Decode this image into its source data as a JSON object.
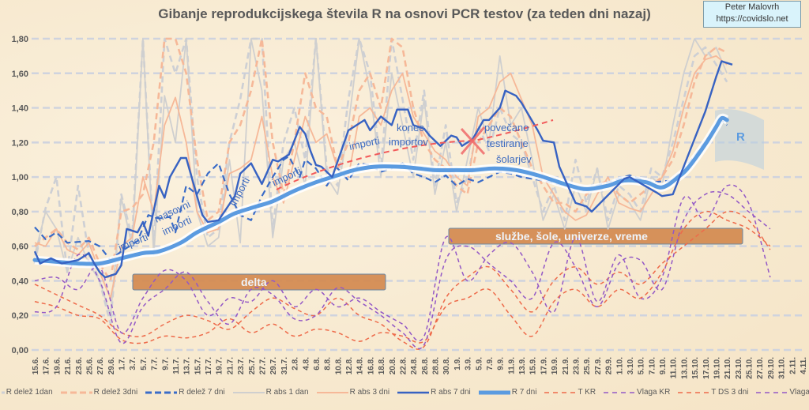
{
  "credit": {
    "line1": "Peter Malovrh",
    "line2": "https://covidslo.net"
  },
  "chart_data": {
    "type": "line",
    "title": "Gibanje reprodukcijskega števila R na osnovi PCR testov (za teden dni nazaj)",
    "xlabel": "",
    "ylabel": "",
    "ylim": [
      0,
      1.8
    ],
    "x_unit": "days since 15.6.",
    "y_ticks": [
      "0,00",
      "0,20",
      "0,40",
      "0,60",
      "0,80",
      "1,00",
      "1,20",
      "1,40",
      "1,60",
      "1,80"
    ],
    "x_ticks": [
      "15.6.",
      "17.6.",
      "19.6.",
      "21.6.",
      "23.6.",
      "25.6.",
      "27.6.",
      "29.6.",
      "1.7.",
      "3.7.",
      "5.7.",
      "7.7.",
      "9.7.",
      "11.7.",
      "13.7.",
      "15.7.",
      "17.7.",
      "19.7.",
      "21.7.",
      "23.7.",
      "25.7.",
      "27.7.",
      "29.7.",
      "31.7.",
      "2.8.",
      "4.8.",
      "6.8.",
      "8.8.",
      "10.8.",
      "12.8.",
      "14.8.",
      "16.8.",
      "18.8.",
      "20.8.",
      "22.8.",
      "24.8.",
      "26.8.",
      "28.8.",
      "30.8.",
      "1.9.",
      "3.9.",
      "5.9.",
      "7.9.",
      "9.9.",
      "11.9.",
      "13.9.",
      "15.9.",
      "17.9.",
      "19.9.",
      "21.9.",
      "23.9.",
      "25.9.",
      "27.9.",
      "29.9.",
      "1.10.",
      "3.10.",
      "5.10.",
      "7.10.",
      "9.10.",
      "11.10.",
      "13.10.",
      "15.10.",
      "17.10.",
      "19.10.",
      "21.10.",
      "23.10.",
      "25.10.",
      "27.10.",
      "29.10.",
      "31.10.",
      "2.11.",
      "4.11."
    ],
    "grid": true,
    "legend_position": "bottom",
    "series": [
      {
        "name": "R delež 1dan",
        "color": "#cdcfd4",
        "style": "dashed",
        "step": 2,
        "values": [
          0.5,
          0.82,
          1.0,
          0.45,
          0.95,
          0.55,
          0.4,
          0.15,
          0.9,
          0.65,
          1.8,
          0.6,
          1.8,
          1.6,
          1.8,
          1.0,
          0.65,
          0.7,
          1.2,
          1.45,
          1.8,
          1.8,
          0.7,
          1.2,
          1.4,
          1.1,
          1.8,
          1.05,
          0.95,
          1.45,
          1.8,
          1.6,
          1.05,
          1.8,
          1.45,
          1.1,
          1.5,
          0.95,
          1.3,
          0.85,
          1.0,
          1.3,
          1.15,
          1.4,
          1.25,
          1.2,
          1.0,
          0.8,
          0.95,
          0.75,
          1.1,
          0.85,
          1.05,
          0.75,
          0.95,
          0.9,
          0.8,
          1.05,
          1.0,
          1.2,
          1.45,
          1.7,
          1.75,
          1.65,
          1.55
        ]
      },
      {
        "name": "R delež 3dni",
        "color": "#f6b898",
        "style": "dashed",
        "step": 2,
        "values": [
          0.6,
          0.65,
          0.7,
          0.62,
          0.58,
          0.65,
          0.5,
          0.4,
          0.8,
          0.82,
          0.9,
          1.2,
          1.8,
          1.8,
          1.6,
          1.1,
          0.75,
          0.8,
          1.2,
          1.3,
          1.5,
          1.8,
          1.2,
          0.9,
          1.2,
          1.6,
          1.4,
          1.35,
          1.05,
          1.2,
          1.5,
          1.6,
          1.4,
          1.8,
          1.75,
          1.4,
          1.2,
          1.1,
          1.05,
          0.95,
          0.9,
          1.2,
          1.3,
          1.4,
          1.35,
          1.2,
          1.05,
          0.95,
          0.85,
          0.85,
          0.8,
          0.9,
          0.95,
          0.98,
          0.9,
          0.85,
          0.9,
          0.95,
          1.0,
          1.1,
          1.3,
          1.55,
          1.7,
          1.75,
          1.72
        ]
      },
      {
        "name": "R delež 7 dni",
        "color": "#3a6cc8",
        "style": "dashed",
        "points": [
          [
            0,
            0.71
          ],
          [
            2,
            0.64
          ],
          [
            4,
            0.68
          ],
          [
            6,
            0.62
          ],
          [
            10,
            0.63
          ],
          [
            12,
            0.6
          ],
          [
            14,
            0.52
          ],
          [
            16,
            0.57
          ],
          [
            19,
            0.63
          ],
          [
            21,
            0.78
          ],
          [
            23,
            0.76
          ],
          [
            25,
            0.77
          ],
          [
            26,
            0.68
          ],
          [
            28,
            0.95
          ],
          [
            30,
            0.9
          ],
          [
            32,
            1.02
          ],
          [
            34,
            1.08
          ],
          [
            36,
            0.9
          ],
          [
            38,
            0.78
          ],
          [
            40,
            0.75
          ],
          [
            42,
            0.89
          ],
          [
            44,
            1.0
          ],
          [
            46,
            1.1
          ],
          [
            47,
            1.12
          ],
          [
            49,
            1.0
          ],
          [
            50,
            1.1
          ],
          [
            52,
            1.05
          ],
          [
            54,
            0.95
          ],
          [
            56,
            1.05
          ],
          [
            58,
            0.98
          ],
          [
            60,
            1.08
          ],
          [
            62,
            1.07
          ],
          [
            64,
            1.03
          ],
          [
            66,
            1.05
          ],
          [
            68,
            1.08
          ],
          [
            70,
            1.02
          ],
          [
            72,
            1.0
          ],
          [
            74,
            0.97
          ],
          [
            76,
            1.01
          ],
          [
            78,
            0.95
          ],
          [
            80,
            0.99
          ],
          [
            82,
            0.97
          ],
          [
            84,
            1.0
          ],
          [
            86,
            1.03
          ],
          [
            88,
            1.02
          ],
          [
            90,
            1.0
          ],
          [
            94,
            0.98
          ],
          [
            98,
            0.95
          ],
          [
            102,
            0.93
          ],
          [
            106,
            0.97
          ],
          [
            110,
            1.01
          ],
          [
            114,
            0.97
          ],
          [
            118,
            0.98
          ],
          [
            122,
            1.12
          ],
          [
            125,
            1.25
          ],
          [
            127,
            1.33
          ],
          [
            128,
            1.3
          ]
        ]
      },
      {
        "name": "R abs 1 dan",
        "color": "#cfcfcf",
        "style": "solid",
        "step": 2,
        "values": [
          0.55,
          0.8,
          0.7,
          0.45,
          0.65,
          0.5,
          0.4,
          0.2,
          0.88,
          0.6,
          1.8,
          0.55,
          1.47,
          1.2,
          1.8,
          0.8,
          0.6,
          0.65,
          1.1,
          0.62,
          1.8,
          1.5,
          0.65,
          1.1,
          1.2,
          0.95,
          1.8,
          1.0,
          0.9,
          1.3,
          1.8,
          1.5,
          1.0,
          1.6,
          1.3,
          1.0,
          1.45,
          0.9,
          1.2,
          0.8,
          1.1,
          1.4,
          1.2,
          1.7,
          1.3,
          1.4,
          1.1,
          0.75,
          0.9,
          0.7,
          0.95,
          0.8,
          1.05,
          0.7,
          0.9,
          0.85,
          0.75,
          1.0,
          0.95,
          1.3,
          1.6,
          1.8,
          1.7,
          1.75,
          1.6
        ]
      },
      {
        "name": "R abs 3 dni",
        "color": "#f6b898",
        "style": "solid",
        "step": 2,
        "values": [
          0.62,
          0.6,
          0.7,
          0.58,
          0.55,
          0.62,
          0.45,
          0.3,
          0.6,
          0.65,
          1.0,
          0.8,
          1.3,
          1.46,
          1.2,
          0.8,
          0.68,
          0.7,
          1.02,
          1.05,
          1.1,
          1.35,
          1.0,
          0.85,
          1.1,
          1.35,
          1.2,
          1.25,
          1.05,
          1.0,
          1.35,
          1.4,
          1.3,
          1.5,
          1.6,
          1.35,
          1.25,
          1.15,
          1.1,
          1.0,
          0.95,
          1.35,
          1.4,
          1.55,
          1.6,
          1.45,
          1.3,
          1.0,
          0.9,
          0.8,
          0.75,
          0.78,
          0.9,
          1.0,
          0.85,
          0.82,
          0.8,
          0.9,
          1.0,
          1.15,
          1.4,
          1.6,
          1.68,
          1.7,
          1.65
        ]
      },
      {
        "name": "R abs 7 dni",
        "color": "#3762c2",
        "style": "solid",
        "points": [
          [
            0,
            0.57
          ],
          [
            1,
            0.5
          ],
          [
            3,
            0.53
          ],
          [
            5,
            0.5
          ],
          [
            8,
            0.52
          ],
          [
            10,
            0.56
          ],
          [
            11,
            0.5
          ],
          [
            12,
            0.45
          ],
          [
            13,
            0.42
          ],
          [
            15,
            0.44
          ],
          [
            16,
            0.49
          ],
          [
            17,
            0.7
          ],
          [
            19,
            0.68
          ],
          [
            20,
            0.74
          ],
          [
            21,
            0.66
          ],
          [
            23,
            0.95
          ],
          [
            24,
            0.88
          ],
          [
            25,
            1.0
          ],
          [
            27,
            1.11
          ],
          [
            28,
            1.11
          ],
          [
            31,
            0.78
          ],
          [
            32,
            0.74
          ],
          [
            34,
            0.75
          ],
          [
            37,
            0.89
          ],
          [
            38,
            1.02
          ],
          [
            40,
            1.08
          ],
          [
            42,
            0.96
          ],
          [
            44,
            1.1
          ],
          [
            45,
            1.09
          ],
          [
            47,
            1.13
          ],
          [
            49,
            1.29
          ],
          [
            50,
            1.25
          ],
          [
            51,
            1.15
          ],
          [
            52,
            1.07
          ],
          [
            53,
            1.06
          ],
          [
            55,
            1.0
          ],
          [
            58,
            1.27
          ],
          [
            61,
            1.33
          ],
          [
            62,
            1.27
          ],
          [
            64,
            1.35
          ],
          [
            66,
            1.3
          ],
          [
            67,
            1.39
          ],
          [
            69,
            1.39
          ],
          [
            70,
            1.3
          ],
          [
            72,
            1.28
          ],
          [
            73,
            1.24
          ],
          [
            75,
            1.18
          ],
          [
            77,
            1.24
          ],
          [
            78,
            1.23
          ],
          [
            79,
            1.18
          ],
          [
            81,
            1.22
          ],
          [
            83,
            1.33
          ],
          [
            84,
            1.33
          ],
          [
            86,
            1.4
          ],
          [
            87,
            1.5
          ],
          [
            89,
            1.47
          ],
          [
            90,
            1.43
          ],
          [
            93,
            1.27
          ],
          [
            94,
            1.21
          ],
          [
            96,
            1.2
          ],
          [
            97,
            1.06
          ],
          [
            100,
            0.85
          ],
          [
            102,
            0.83
          ],
          [
            103,
            0.8
          ],
          [
            109,
            0.99
          ],
          [
            110,
            1.0
          ],
          [
            115,
            0.91
          ],
          [
            116,
            0.89
          ],
          [
            118,
            0.9
          ],
          [
            121,
            1.14
          ],
          [
            124,
            1.38
          ],
          [
            126,
            1.58
          ],
          [
            127,
            1.67
          ],
          [
            129,
            1.65
          ]
        ]
      },
      {
        "name": "R 7 dni",
        "color": "#5b9be0",
        "style": "thick",
        "points": [
          [
            0,
            0.52
          ],
          [
            4,
            0.51
          ],
          [
            8,
            0.5
          ],
          [
            12,
            0.5
          ],
          [
            16,
            0.53
          ],
          [
            20,
            0.56
          ],
          [
            23,
            0.57
          ],
          [
            27,
            0.62
          ],
          [
            30,
            0.68
          ],
          [
            34,
            0.74
          ],
          [
            37,
            0.79
          ],
          [
            41,
            0.83
          ],
          [
            44,
            0.86
          ],
          [
            48,
            0.92
          ],
          [
            52,
            0.97
          ],
          [
            56,
            1.01
          ],
          [
            59,
            1.04
          ],
          [
            63,
            1.06
          ],
          [
            67,
            1.06
          ],
          [
            71,
            1.05
          ],
          [
            74,
            1.04
          ],
          [
            78,
            1.04
          ],
          [
            81,
            1.04
          ],
          [
            85,
            1.05
          ],
          [
            89,
            1.04
          ],
          [
            93,
            1.01
          ],
          [
            96,
            0.98
          ],
          [
            99,
            0.95
          ],
          [
            102,
            0.93
          ],
          [
            106,
            0.95
          ],
          [
            109,
            0.98
          ],
          [
            113,
            0.97
          ],
          [
            116,
            0.94
          ],
          [
            119,
            1.0
          ],
          [
            121,
            1.06
          ],
          [
            124,
            1.19
          ],
          [
            126,
            1.29
          ],
          [
            127,
            1.34
          ],
          [
            128,
            1.33
          ]
        ]
      },
      {
        "name": "T KR",
        "color": "#ee6a4a",
        "style": "dashed-thin",
        "step": 4,
        "values": [
          0.38,
          0.32,
          0.26,
          0.2,
          0.1,
          0.08,
          0.15,
          0.2,
          0.17,
          0.12,
          0.22,
          0.3,
          0.24,
          0.2,
          0.3,
          0.2,
          0.15,
          0.05,
          0.02,
          0.3,
          0.42,
          0.48,
          0.35,
          0.22,
          0.4,
          0.48,
          0.38,
          0.45,
          0.38,
          0.5,
          0.6,
          0.7,
          0.8,
          0.75,
          0.58
        ]
      },
      {
        "name": "Vlaga KR",
        "color": "#9358c6",
        "style": "dashed-thin",
        "step": 4,
        "values": [
          0.4,
          0.42,
          0.35,
          0.48,
          0.1,
          0.3,
          0.46,
          0.4,
          0.2,
          0.3,
          0.28,
          0.4,
          0.25,
          0.35,
          0.25,
          0.3,
          0.22,
          0.15,
          0.08,
          0.65,
          0.4,
          0.55,
          0.62,
          0.45,
          0.22,
          0.65,
          0.28,
          0.55,
          0.3,
          0.42,
          0.88,
          0.75,
          0.95,
          0.85,
          0.42
        ]
      },
      {
        "name": "T DS 3 dni",
        "color": "#ee6a4a",
        "style": "dashed-thin",
        "step": 4,
        "values": [
          0.28,
          0.25,
          0.2,
          0.18,
          0.06,
          0.04,
          0.08,
          0.07,
          0.1,
          0.18,
          0.1,
          0.15,
          0.08,
          0.12,
          0.1,
          0.05,
          0.1,
          0.08,
          0.05,
          0.25,
          0.3,
          0.35,
          0.2,
          0.08,
          0.28,
          0.35,
          0.25,
          0.35,
          0.3,
          0.45,
          0.7,
          0.8,
          0.75,
          0.7,
          0.6
        ]
      },
      {
        "name": "Vlaga Deskle",
        "color": "#9358c6",
        "style": "dashed-thin",
        "step": 4,
        "values": [
          0.22,
          0.25,
          0.55,
          0.4,
          0.04,
          0.25,
          0.35,
          0.45,
          0.28,
          0.15,
          0.35,
          0.32,
          0.18,
          0.2,
          0.36,
          0.28,
          0.2,
          0.1,
          0.03,
          0.52,
          0.6,
          0.5,
          0.4,
          0.3,
          0.62,
          0.48,
          0.25,
          0.5,
          0.52,
          0.35,
          0.75,
          0.9,
          0.9,
          0.8,
          0.7
        ]
      }
    ],
    "annotations": {
      "delta": "delta",
      "autumn": "službe, šole, univerze, vreme",
      "importi": "importi",
      "masovni": "masovni",
      "konec": "konec",
      "importov": "importov",
      "povecano": "povečano",
      "testiranje": "testiranje",
      "solarjev": "šolarjev",
      "r_label": "R"
    }
  }
}
